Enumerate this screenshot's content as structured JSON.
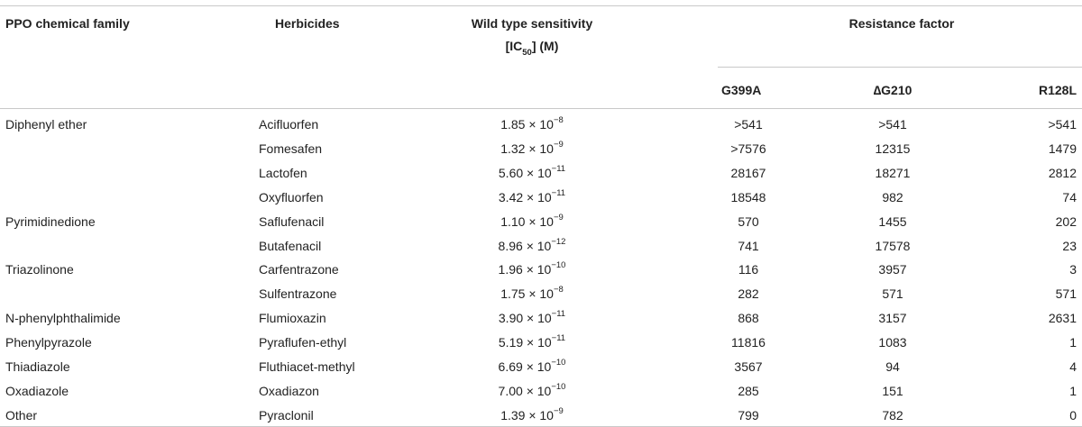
{
  "table": {
    "headers": {
      "family": "PPO chemical family",
      "herbicides": "Herbicides",
      "sensitivity_line1": "Wild type sensitivity",
      "sensitivity_line2_pre": "[IC",
      "sensitivity_line2_sub": "50",
      "sensitivity_line2_post": "] (M)",
      "resistance": "Resistance factor",
      "g399a": "G399A",
      "dg210": "∆G210",
      "r128l": "R128L"
    },
    "rows": [
      {
        "family": "Diphenyl ether",
        "herbicide": "Acifluorfen",
        "mant": "1.85",
        "exp": "−8",
        "g399a": ">541",
        "dg210": ">541",
        "r128l": ">541"
      },
      {
        "family": "",
        "herbicide": "Fomesafen",
        "mant": "1.32",
        "exp": "−9",
        "g399a": ">7576",
        "dg210": "12315",
        "r128l": "1479"
      },
      {
        "family": "",
        "herbicide": "Lactofen",
        "mant": "5.60",
        "exp": "−11",
        "g399a": "28167",
        "dg210": "18271",
        "r128l": "2812"
      },
      {
        "family": "",
        "herbicide": "Oxyfluorfen",
        "mant": "3.42",
        "exp": "−11",
        "g399a": "18548",
        "dg210": "982",
        "r128l": "74"
      },
      {
        "family": "Pyrimidinedione",
        "herbicide": "Saflufenacil",
        "mant": "1.10",
        "exp": "−9",
        "g399a": "570",
        "dg210": "1455",
        "r128l": "202"
      },
      {
        "family": "",
        "herbicide": "Butafenacil",
        "mant": "8.96",
        "exp": "−12",
        "g399a": "741",
        "dg210": "17578",
        "r128l": "23"
      },
      {
        "family": "Triazolinone",
        "herbicide": "Carfentrazone",
        "mant": "1.96",
        "exp": "−10",
        "g399a": "116",
        "dg210": "3957",
        "r128l": "3"
      },
      {
        "family": "",
        "herbicide": "Sulfentrazone",
        "mant": "1.75",
        "exp": "−8",
        "g399a": "282",
        "dg210": "571",
        "r128l": "571"
      },
      {
        "family": "N-phenylphthalimide",
        "herbicide": "Flumioxazin",
        "mant": "3.90",
        "exp": "−11",
        "g399a": "868",
        "dg210": "3157",
        "r128l": "2631"
      },
      {
        "family": "Phenylpyrazole",
        "herbicide": "Pyraflufen-ethyl",
        "mant": "5.19",
        "exp": "−11",
        "g399a": "11816",
        "dg210": "1083",
        "r128l": "1"
      },
      {
        "family": "Thiadiazole",
        "herbicide": "Fluthiacet-methyl",
        "mant": "6.69",
        "exp": "−10",
        "g399a": "3567",
        "dg210": "94",
        "r128l": "4"
      },
      {
        "family": "Oxadiazole",
        "herbicide": "Oxadiazon",
        "mant": "7.00",
        "exp": "−10",
        "g399a": "285",
        "dg210": "151",
        "r128l": "1"
      },
      {
        "family": "Other",
        "herbicide": "Pyraclonil",
        "mant": "1.39",
        "exp": "−9",
        "g399a": "799",
        "dg210": "782",
        "r128l": "0"
      }
    ],
    "times_symbol": "× 10"
  }
}
